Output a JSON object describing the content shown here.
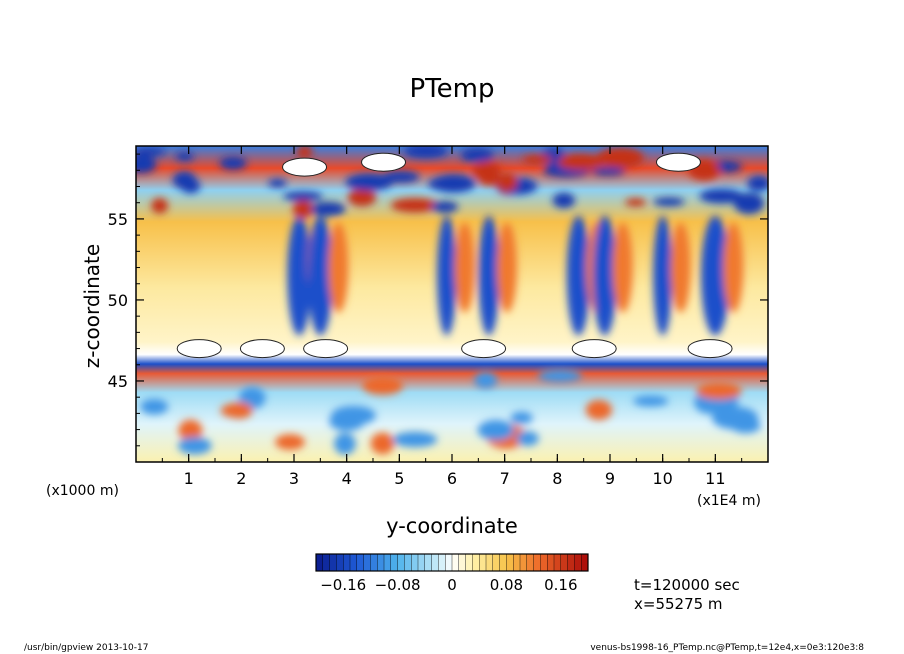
{
  "chart_data": {
    "type": "heatmap",
    "title": "PTemp",
    "xlabel": "y-coordinate",
    "ylabel": "z-coordinate",
    "x_unit": "(x1E4 m)",
    "y_unit": "(x1000 m)",
    "xlim": [
      0,
      12
    ],
    "ylim": [
      40,
      59.5
    ],
    "x_ticks": [
      1,
      2,
      3,
      4,
      5,
      6,
      7,
      8,
      9,
      10,
      11
    ],
    "y_ticks": [
      45,
      50,
      55
    ],
    "colorbar": {
      "range": [
        -0.2,
        0.2
      ],
      "ticks": [
        -0.16,
        -0.08,
        0,
        0.08,
        0.16
      ],
      "tick_labels": [
        "−0.16",
        "−0.08",
        "0",
        "0.08",
        "0.16"
      ]
    },
    "regions": [
      {
        "y_range": [
          40,
          45
        ],
        "value": 0.02
      },
      {
        "y_range": [
          45.5,
          47
        ],
        "value": -0.12
      },
      {
        "y_range": [
          47,
          55
        ],
        "value": 0.04
      },
      {
        "y_range": [
          55,
          59.5
        ],
        "value": -0.06
      }
    ],
    "vertical_plumes": [
      3.1,
      3.5,
      5.9,
      6.7,
      8.4,
      8.9,
      10.0,
      11.0
    ]
  },
  "info": {
    "time": "t=120000 sec",
    "xpos": "x=55275 m"
  },
  "footer": {
    "left": "/usr/bin/gpview  2013-10-17",
    "right": "venus-bs1998-16_PTemp.nc@PTemp,t=12e4,x=0e3:120e3:8"
  }
}
